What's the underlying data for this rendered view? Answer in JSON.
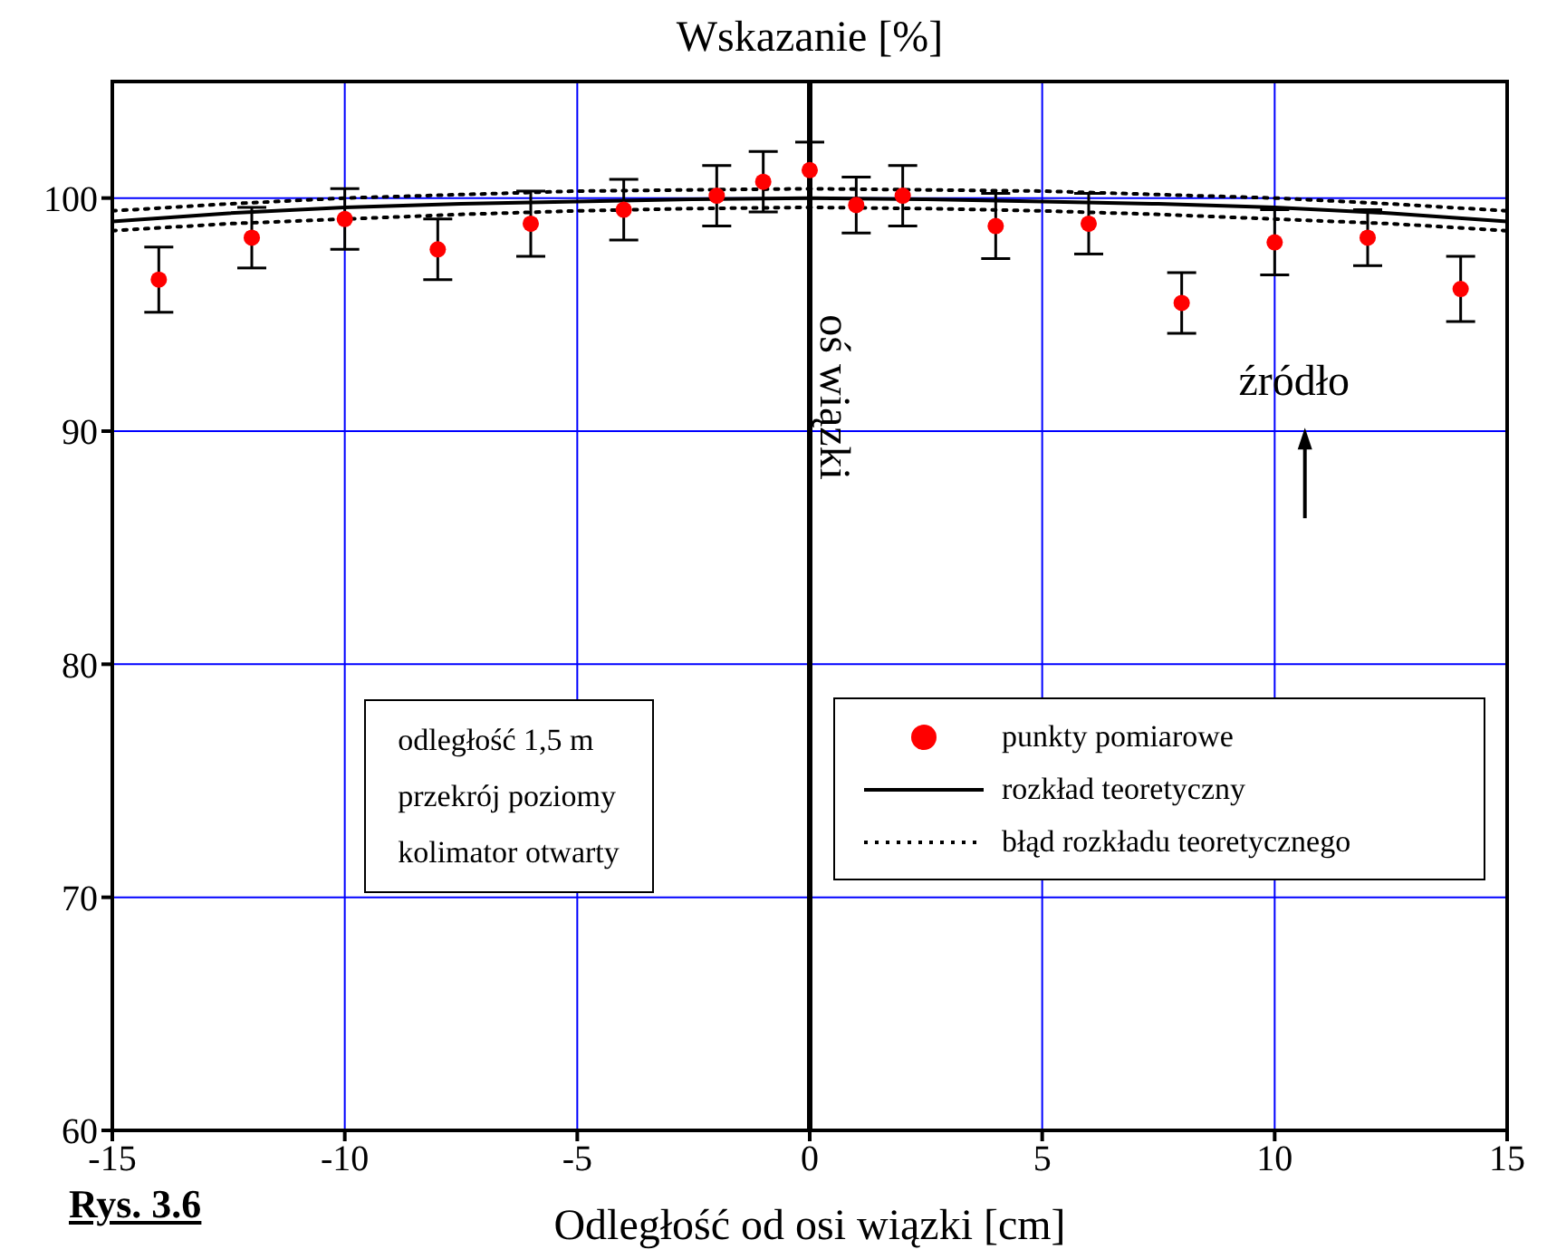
{
  "chart_data": {
    "type": "scatter",
    "title": "Wskazanie [%]",
    "xlabel": "Odległość od osi wiązki [cm]",
    "xlim": [
      -15,
      15
    ],
    "xticks": [
      -15,
      -10,
      -5,
      0,
      5,
      10,
      15
    ],
    "ylim": [
      60,
      105
    ],
    "yticks": [
      60,
      70,
      80,
      90,
      100
    ],
    "grid": true,
    "legend": "bottom right",
    "marker": "circle",
    "series": [
      {
        "name": "punkty pomiarowe",
        "color": "#ff0000",
        "x": [
          -14,
          -12,
          -10,
          -8,
          -6,
          -4,
          -2,
          -1,
          0,
          1,
          2,
          4,
          6,
          8,
          10,
          12,
          14
        ],
        "values": [
          96.5,
          98.3,
          99.1,
          97.8,
          98.9,
          99.5,
          100.1,
          100.7,
          101.2,
          99.7,
          100.1,
          98.8,
          98.9,
          95.5,
          98.1,
          98.3,
          96.1
        ],
        "errors": [
          1.4,
          1.3,
          1.3,
          1.3,
          1.4,
          1.3,
          1.3,
          1.3,
          1.2,
          1.2,
          1.3,
          1.4,
          1.3,
          1.3,
          1.4,
          1.2,
          1.4
        ]
      },
      {
        "name": "rozkład teoretyczny",
        "type": "line",
        "line_style": "solid",
        "marker": "none",
        "color": "#000000",
        "x": [
          -15,
          -12.5,
          -10,
          -7.5,
          -5,
          -2.5,
          0,
          2.5,
          5,
          7.5,
          10,
          12.5,
          15
        ],
        "values": [
          99.0,
          99.35,
          99.6,
          99.75,
          99.85,
          99.95,
          100,
          99.95,
          99.85,
          99.75,
          99.6,
          99.35,
          99.0
        ]
      },
      {
        "name": "błąd rozkładu teoretycznego",
        "type": "line",
        "line_style": "dotted",
        "marker": "none",
        "color": "#000000",
        "x": [
          -15,
          -12.5,
          -10,
          -7.5,
          -5,
          -2.5,
          0,
          2.5,
          5,
          7.5,
          10,
          12.5,
          15
        ],
        "values": [
          99.45,
          99.75,
          100.0,
          100.15,
          100.3,
          100.35,
          100.4,
          100.35,
          100.3,
          100.15,
          100.0,
          99.75,
          99.45
        ]
      },
      {
        "type": "line",
        "line_style": "dotted",
        "marker": "none",
        "color": "#000000",
        "x": [
          -15,
          -12.5,
          -10,
          -7.5,
          -5,
          -2.5,
          0,
          2.5,
          5,
          7.5,
          10,
          12.5,
          15
        ],
        "values": [
          98.6,
          98.9,
          99.1,
          99.3,
          99.45,
          99.55,
          99.6,
          99.55,
          99.45,
          99.3,
          99.1,
          98.9,
          98.6
        ]
      }
    ],
    "ref_lines": [
      {
        "axis": "x",
        "value": 0,
        "label": "oś wiązki",
        "color": "#000000"
      }
    ],
    "annotations": [
      "źródło",
      "odległość 1,5 m",
      "przekrój poziomy",
      "kolimator otwarty",
      "Rys. 3.6"
    ]
  }
}
